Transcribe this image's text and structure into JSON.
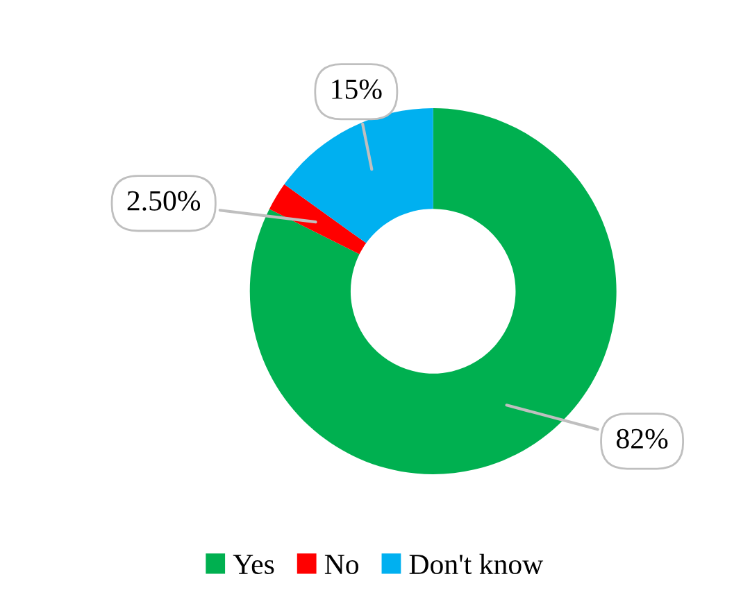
{
  "chart_data": {
    "type": "donut",
    "categories": [
      "Yes",
      "No",
      "Don't know"
    ],
    "values": [
      82,
      2.5,
      15
    ],
    "colors": [
      "#00b050",
      "#ff0000",
      "#00b0f0"
    ],
    "value_labels": [
      "82%",
      "2.50%",
      "15%"
    ],
    "legend": "bottom"
  }
}
